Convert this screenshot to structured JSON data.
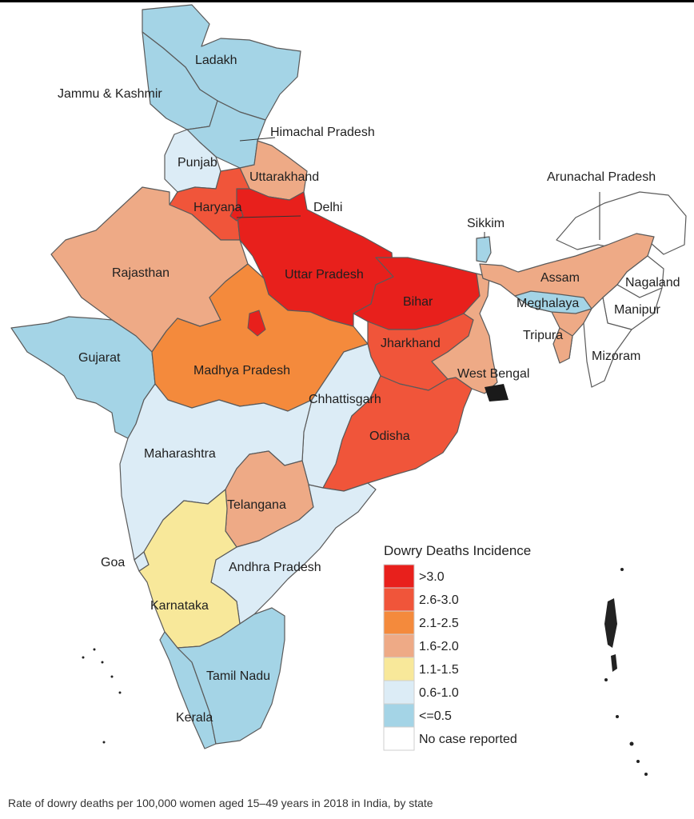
{
  "title": "Dowry Deaths Incidence",
  "caption": "Rate of dowry deaths per 100,000 women aged 15–49 years in 2018 in India, by state",
  "legend": {
    "title": "Dowry Deaths Incidence",
    "items": [
      {
        "label": ">3.0",
        "color": "#e8201c"
      },
      {
        "label": "2.6-3.0",
        "color": "#f0553a"
      },
      {
        "label": "2.1-2.5",
        "color": "#f48a3c"
      },
      {
        "label": "1.6-2.0",
        "color": "#eeaa86"
      },
      {
        "label": "1.1-1.5",
        "color": "#f8e89a"
      },
      {
        "label": "0.6-1.0",
        "color": "#dcecf6"
      },
      {
        "label": "<=0.5",
        "color": "#a4d4e6"
      },
      {
        "label": "No case reported",
        "color": "#ffffff"
      }
    ]
  },
  "states": {
    "ladakh": {
      "label": "Ladakh",
      "category": "<=0.5"
    },
    "jk": {
      "label": "Jammu & Kashmir",
      "category": "<=0.5"
    },
    "hp": {
      "label": "Himachal Pradesh",
      "category": "<=0.5"
    },
    "punjab": {
      "label": "Punjab",
      "category": "0.6-1.0"
    },
    "uttarakhand": {
      "label": "Uttarakhand",
      "category": "1.6-2.0"
    },
    "haryana": {
      "label": "Haryana",
      "category": "2.6-3.0"
    },
    "delhi": {
      "label": "Delhi",
      "category": ">3.0"
    },
    "rajasthan": {
      "label": "Rajasthan",
      "category": "1.6-2.0"
    },
    "up": {
      "label": "Uttar Pradesh",
      "category": ">3.0"
    },
    "bihar": {
      "label": "Bihar",
      "category": ">3.0"
    },
    "sikkim": {
      "label": "Sikkim",
      "category": "<=0.5"
    },
    "arunachal": {
      "label": "Arunachal Pradesh",
      "category": "No case reported"
    },
    "assam": {
      "label": "Assam",
      "category": "1.6-2.0"
    },
    "nagaland": {
      "label": "Nagaland",
      "category": "No case reported"
    },
    "meghalaya": {
      "label": "Meghalaya",
      "category": "<=0.5"
    },
    "manipur": {
      "label": "Manipur",
      "category": "No case reported"
    },
    "tripura": {
      "label": "Tripura",
      "category": "1.6-2.0"
    },
    "mizoram": {
      "label": "Mizoram",
      "category": "No case reported"
    },
    "gujarat": {
      "label": "Gujarat",
      "category": "<=0.5"
    },
    "mp": {
      "label": "Madhya Pradesh",
      "category": "2.1-2.5"
    },
    "jharkhand": {
      "label": "Jharkhand",
      "category": "2.6-3.0"
    },
    "wb": {
      "label": "West Bengal",
      "category": "1.6-2.0"
    },
    "chhattisgarh": {
      "label": "Chhattisgarh",
      "category": "0.6-1.0"
    },
    "odisha": {
      "label": "Odisha",
      "category": "2.6-3.0"
    },
    "maharashtra": {
      "label": "Maharashtra",
      "category": "0.6-1.0"
    },
    "telangana": {
      "label": "Telangana",
      "category": "1.6-2.0"
    },
    "goa": {
      "label": "Goa",
      "category": "0.6-1.0"
    },
    "ap": {
      "label": "Andhra Pradesh",
      "category": "0.6-1.0"
    },
    "karnataka": {
      "label": "Karnataka",
      "category": "1.1-1.5"
    },
    "tn": {
      "label": "Tamil Nadu",
      "category": "<=0.5"
    },
    "kerala": {
      "label": "Kerala",
      "category": "<=0.5"
    }
  }
}
